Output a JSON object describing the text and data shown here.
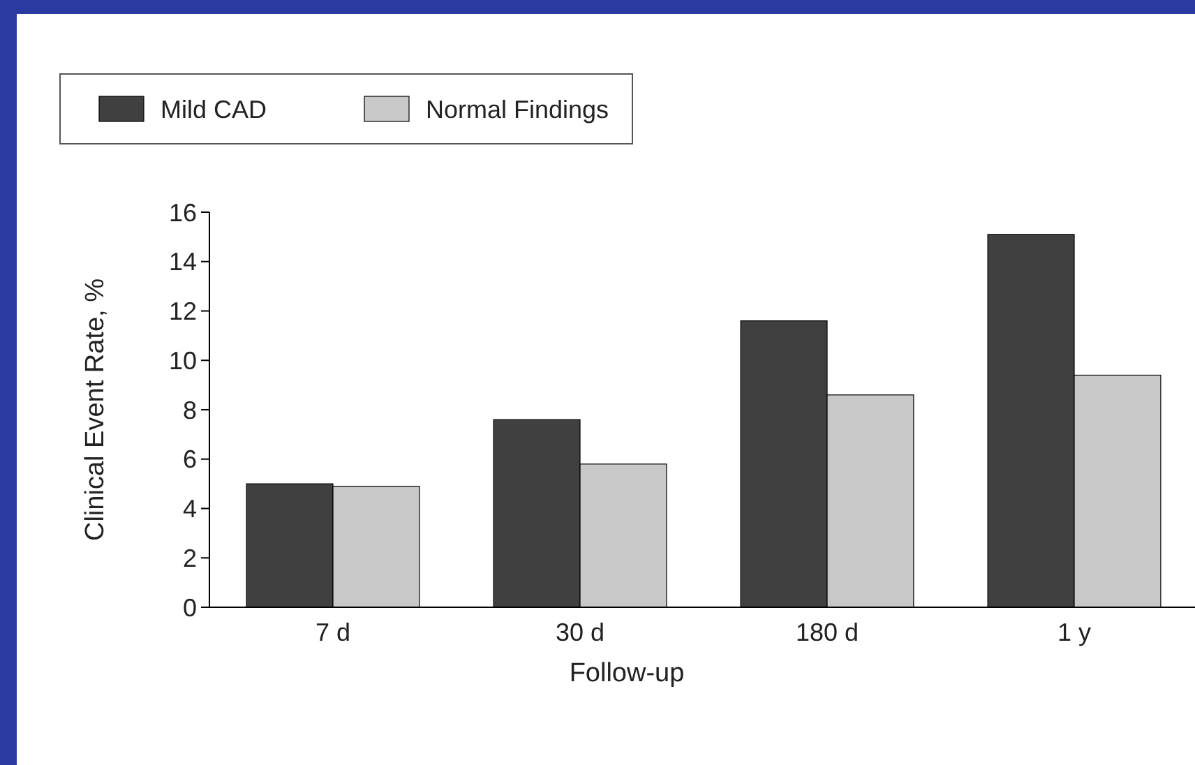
{
  "chart_data": {
    "type": "bar",
    "xlabel": "Follow-up",
    "ylabel": "Clinical Event Rate, %",
    "categories": [
      "7 d",
      "30 d",
      "180 d",
      "1 y"
    ],
    "series": [
      {
        "name": "Mild CAD",
        "color": "#404040",
        "values": [
          5.0,
          7.6,
          11.6,
          15.1
        ]
      },
      {
        "name": "Normal Findings",
        "color": "#c8c8c8",
        "values": [
          4.9,
          5.8,
          8.6,
          9.4
        ]
      }
    ],
    "ylim": [
      0,
      16
    ],
    "yticks": [
      0,
      2,
      4,
      6,
      8,
      10,
      12,
      14,
      16
    ],
    "grid": false,
    "legend": "top"
  }
}
